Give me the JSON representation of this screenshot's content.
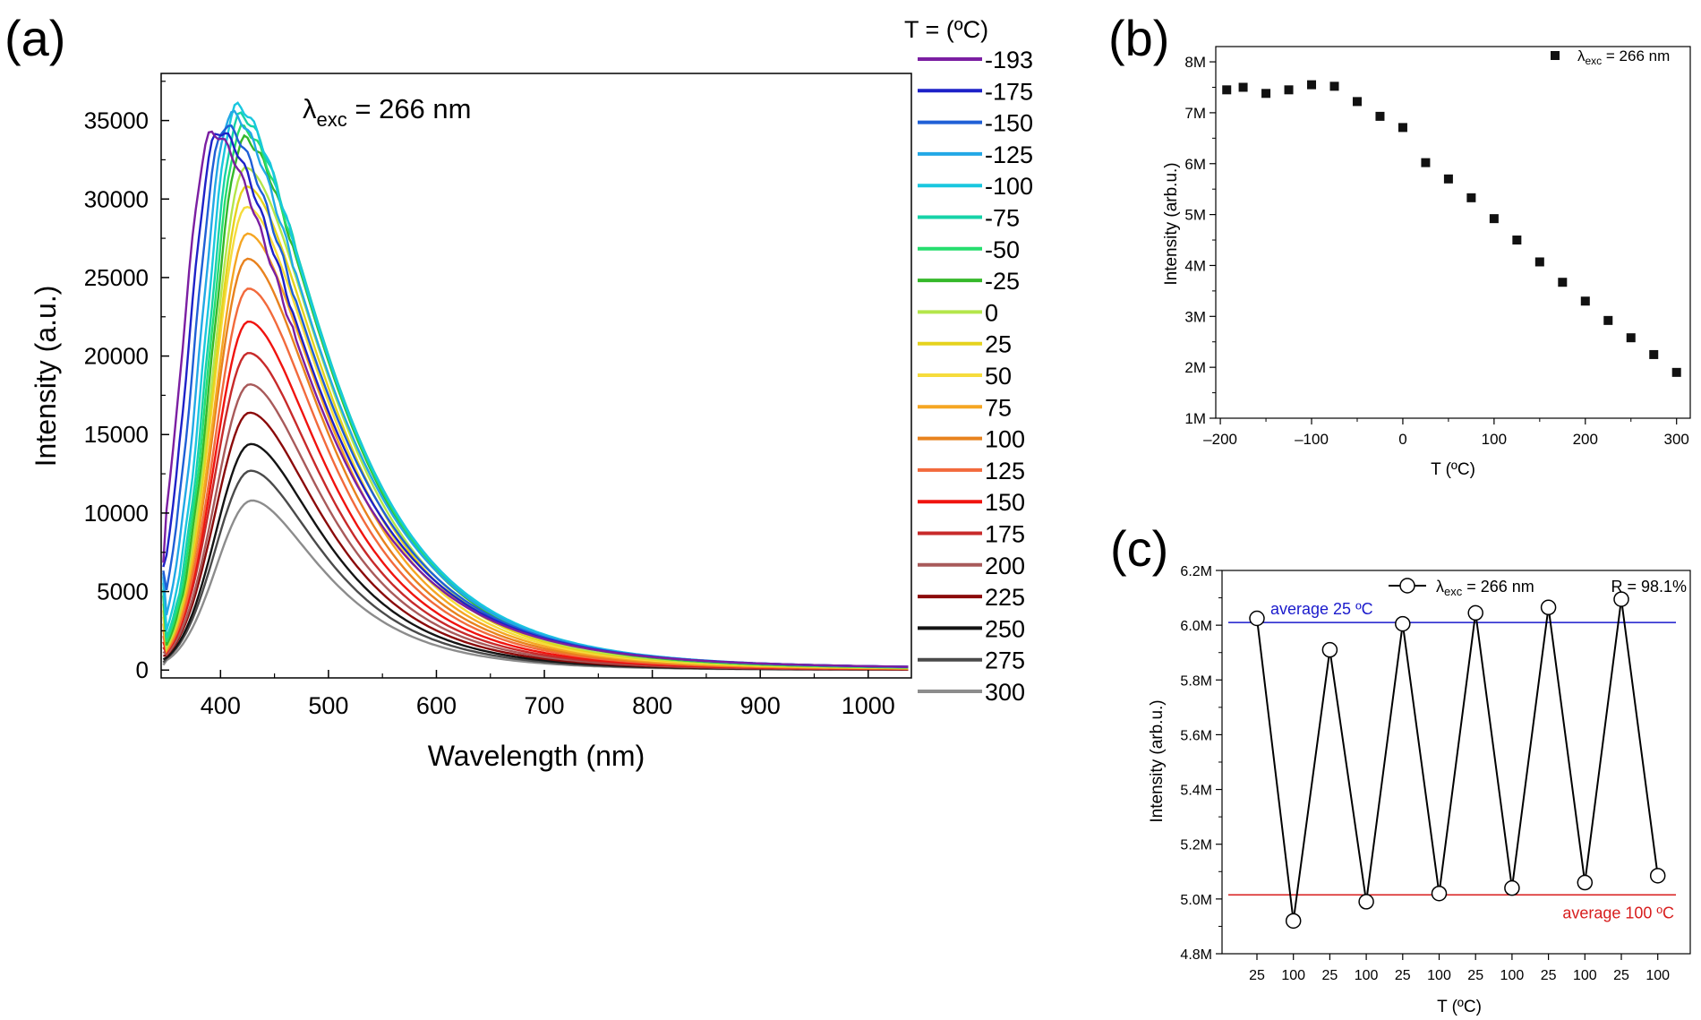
{
  "chart_data": [
    {
      "panel": "(a)",
      "type": "line",
      "xlabel": "Wavelength (nm)",
      "ylabel": "Intensity (a.u.)",
      "annotation": {
        "prefix": "λ",
        "sub": "exc",
        "suffix": " = 266 nm"
      },
      "xlim": [
        345,
        1040
      ],
      "ylim": [
        -500,
        38000
      ],
      "xticks": [
        400,
        500,
        600,
        700,
        800,
        900,
        1000
      ],
      "yticks": [
        0,
        5000,
        10000,
        15000,
        20000,
        25000,
        30000,
        35000
      ],
      "legend_title": "T = (ºC)",
      "legend_placement": "right-outside",
      "series": [
        {
          "name": "-193",
          "color": "#7b1fa2",
          "peak_x": 392,
          "peak_y": 34200
        },
        {
          "name": "-175",
          "color": "#1e22c8",
          "peak_x": 398,
          "peak_y": 34300
        },
        {
          "name": "-150",
          "color": "#1f5fd6",
          "peak_x": 404,
          "peak_y": 34600
        },
        {
          "name": "-125",
          "color": "#22a8e6",
          "peak_x": 410,
          "peak_y": 35400
        },
        {
          "name": "-100",
          "color": "#19c7df",
          "peak_x": 415,
          "peak_y": 35900
        },
        {
          "name": "-75",
          "color": "#16d3a8",
          "peak_x": 418,
          "peak_y": 35300
        },
        {
          "name": "-50",
          "color": "#25de6e",
          "peak_x": 420,
          "peak_y": 34500
        },
        {
          "name": "-25",
          "color": "#35b82a",
          "peak_x": 422,
          "peak_y": 33800
        },
        {
          "name": "0",
          "color": "#b4e64b",
          "peak_x": 423,
          "peak_y": 32000
        },
        {
          "name": "25",
          "color": "#e6d31e",
          "peak_x": 424,
          "peak_y": 30800
        },
        {
          "name": "50",
          "color": "#f6dc3c",
          "peak_x": 424,
          "peak_y": 29500
        },
        {
          "name": "75",
          "color": "#f5a623",
          "peak_x": 425,
          "peak_y": 27800
        },
        {
          "name": "100",
          "color": "#e8821e",
          "peak_x": 425,
          "peak_y": 26200
        },
        {
          "name": "125",
          "color": "#f26a3c",
          "peak_x": 426,
          "peak_y": 24300
        },
        {
          "name": "150",
          "color": "#f0140f",
          "peak_x": 426,
          "peak_y": 22200
        },
        {
          "name": "175",
          "color": "#c82a2a",
          "peak_x": 426,
          "peak_y": 20200
        },
        {
          "name": "200",
          "color": "#a85a5a",
          "peak_x": 427,
          "peak_y": 18200
        },
        {
          "name": "225",
          "color": "#8b0a0a",
          "peak_x": 427,
          "peak_y": 16400
        },
        {
          "name": "250",
          "color": "#141414",
          "peak_x": 428,
          "peak_y": 14400
        },
        {
          "name": "275",
          "color": "#4a4a4a",
          "peak_x": 428,
          "peak_y": 12700
        },
        {
          "name": "300",
          "color": "#8c8c8c",
          "peak_x": 429,
          "peak_y": 10800
        }
      ]
    },
    {
      "panel": "(b)",
      "type": "scatter",
      "xlabel": "T (ºC)",
      "ylabel": "Intensity (arb.u.)",
      "legend": {
        "prefix": "λ",
        "sub": "exc",
        "suffix": " = 266 nm"
      },
      "legend_placement": "top-right",
      "xlim": [
        -205,
        315
      ],
      "ylim": [
        1,
        8.3
      ],
      "xticks": [
        -200,
        -100,
        0,
        100,
        200,
        300
      ],
      "xtick_labels": [
        "–200",
        "–100",
        "0",
        "100",
        "200",
        "300"
      ],
      "yticks": [
        1,
        2,
        3,
        4,
        5,
        6,
        7,
        8
      ],
      "ytick_labels": [
        "1M",
        "2M",
        "3M",
        "4M",
        "5M",
        "6M",
        "7M",
        "8M"
      ],
      "x": [
        -193,
        -175,
        -150,
        -125,
        -100,
        -75,
        -50,
        -25,
        0,
        25,
        50,
        75,
        100,
        125,
        150,
        175,
        200,
        225,
        250,
        275,
        300
      ],
      "y": [
        7.45,
        7.5,
        7.38,
        7.45,
        7.55,
        7.52,
        7.22,
        6.93,
        6.71,
        6.02,
        5.7,
        5.33,
        4.92,
        4.5,
        4.07,
        3.67,
        3.3,
        2.92,
        2.58,
        2.25,
        1.9
      ]
    },
    {
      "panel": "(c)",
      "type": "line",
      "xlabel": "T (ºC)",
      "ylabel": "Intensity (arb.u.)",
      "legend": {
        "prefix": "λ",
        "sub": "exc",
        "suffix": " = 266 nm"
      },
      "r_label": "R = 98.1%",
      "categories": [
        "25",
        "100",
        "25",
        "100",
        "25",
        "100",
        "25",
        "100",
        "25",
        "100",
        "25",
        "100"
      ],
      "values": [
        6.025,
        4.92,
        5.91,
        4.99,
        6.005,
        5.02,
        6.045,
        5.04,
        6.065,
        5.06,
        6.095,
        5.085
      ],
      "ylim": [
        4.8,
        6.2
      ],
      "yticks": [
        4.8,
        5.0,
        5.2,
        5.4,
        5.6,
        5.8,
        6.0,
        6.2
      ],
      "ytick_labels": [
        "4.8M",
        "5.0M",
        "5.2M",
        "5.4M",
        "5.6M",
        "5.8M",
        "6.0M",
        "6.2M"
      ],
      "reference_lines": [
        {
          "label": "average 25 ºC",
          "value": 6.01,
          "color": "#1a1acc"
        },
        {
          "label": "average 100 ºC",
          "value": 5.015,
          "color": "#d81e1e"
        }
      ]
    }
  ]
}
